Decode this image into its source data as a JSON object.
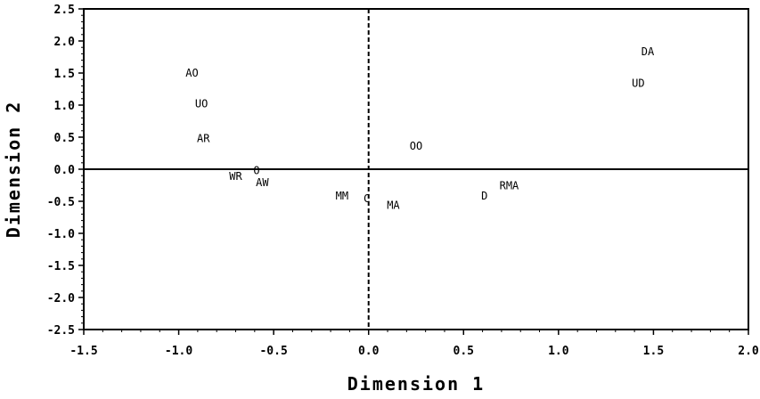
{
  "chart_data": {
    "type": "scatter",
    "xlabel": "Dimension 1",
    "ylabel": "Dimension 2",
    "xlim": [
      -1.5,
      2.0
    ],
    "ylim": [
      -2.5,
      2.5
    ],
    "x_ticks": [
      "-1.5",
      "-1.0",
      "-0.5",
      "0.0",
      "0.5",
      "1.0",
      "1.5",
      "2.0"
    ],
    "x_tick_values": [
      -1.5,
      -1.0,
      -0.5,
      0.0,
      0.5,
      1.0,
      1.5,
      2.0
    ],
    "y_ticks": [
      "2.5",
      "2.0",
      "1.5",
      "1.0",
      "0.5",
      "0.0",
      "-0.5",
      "-1.0",
      "-1.5",
      "-2.0",
      "-2.5"
    ],
    "y_tick_values": [
      2.5,
      2.0,
      1.5,
      1.0,
      0.5,
      0.0,
      -0.5,
      -1.0,
      -1.5,
      -2.0,
      -2.5
    ],
    "grid": false,
    "reference_lines": {
      "horizontal_y": 0.0,
      "vertical_x": 0.0,
      "vertical_style": "dashed"
    },
    "points": [
      {
        "label": "AO",
        "x": -0.93,
        "y": 1.5
      },
      {
        "label": "UO",
        "x": -0.88,
        "y": 1.02
      },
      {
        "label": "AR",
        "x": -0.87,
        "y": 0.48
      },
      {
        "label": "WR",
        "x": -0.7,
        "y": -0.11
      },
      {
        "label": "O",
        "x": -0.59,
        "y": -0.02
      },
      {
        "label": "AW",
        "x": -0.56,
        "y": -0.21
      },
      {
        "label": "MM",
        "x": -0.14,
        "y": -0.42
      },
      {
        "label": "C",
        "x": -0.01,
        "y": -0.46
      },
      {
        "label": "MA",
        "x": 0.13,
        "y": -0.56
      },
      {
        "label": "OO",
        "x": 0.25,
        "y": 0.36
      },
      {
        "label": "D",
        "x": 0.61,
        "y": -0.42
      },
      {
        "label": "RMA",
        "x": 0.74,
        "y": -0.26
      },
      {
        "label": "DA",
        "x": 1.47,
        "y": 1.83
      },
      {
        "label": "UD",
        "x": 1.42,
        "y": 1.34
      }
    ]
  }
}
